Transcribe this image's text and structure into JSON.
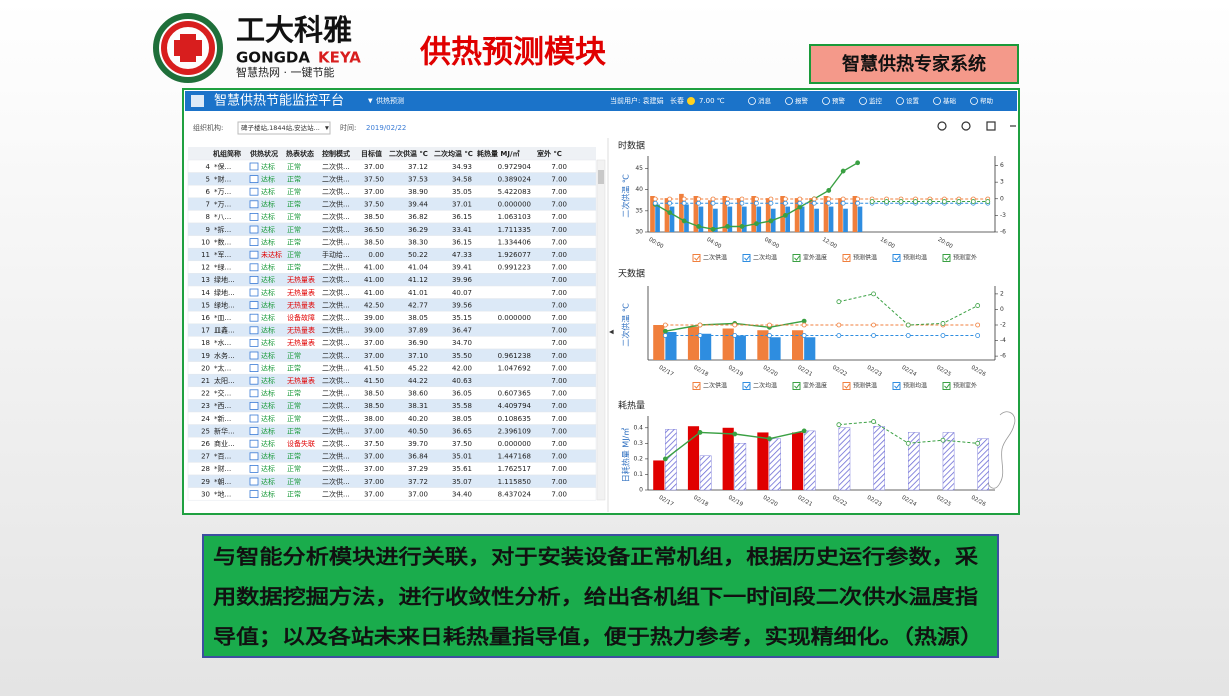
{
  "header": {
    "brand": "工大科雅",
    "brand_en_1": "GONGDA",
    "brand_en_2": "KEYA",
    "slogan": "智慧热网 · 一键节能",
    "title": "供热预测模块",
    "badge": "智慧供热专家系统"
  },
  "app": {
    "title": "智慧供热节能监控平台",
    "menu": "供热预测",
    "user": "当前用户: 袁建娟",
    "city": "长春",
    "temperature": "7.00 ℃",
    "nav": [
      "消息",
      "报警",
      "预警",
      "监控",
      "设置",
      "基础",
      "帮助"
    ],
    "filter": {
      "org_label": "组织机构:",
      "org_value": "碑子楼站,1844站,安达站...",
      "time_label": "时间:",
      "time_value": "2019/02/22"
    }
  },
  "table": {
    "columns": [
      "机组简称",
      "供热状况",
      "热表状态",
      "控制模式",
      "目标值",
      "二次供温 ℃",
      "二次均温 ℃",
      "耗热量 MJ/㎡",
      "室外 ℃"
    ],
    "rows": [
      [
        "4",
        "*保...",
        "达标",
        "正常",
        "二次供...",
        "37.00",
        "37.12",
        "34.93",
        "0.972904",
        "7.00"
      ],
      [
        "5",
        "*财...",
        "达标",
        "正常",
        "二次供...",
        "37.50",
        "37.53",
        "34.58",
        "0.389024",
        "7.00"
      ],
      [
        "6",
        "*万...",
        "达标",
        "正常",
        "二次供...",
        "37.00",
        "38.90",
        "35.05",
        "5.422083",
        "7.00"
      ],
      [
        "7",
        "*万...",
        "达标",
        "正常",
        "二次供...",
        "37.50",
        "39.44",
        "37.01",
        "0.000000",
        "7.00"
      ],
      [
        "8",
        "*八...",
        "达标",
        "正常",
        "二次供...",
        "38.50",
        "36.82",
        "36.15",
        "1.063103",
        "7.00"
      ],
      [
        "9",
        "*拆...",
        "达标",
        "正常",
        "二次供...",
        "36.50",
        "36.29",
        "33.41",
        "1.711335",
        "7.00"
      ],
      [
        "10",
        "*数...",
        "达标",
        "正常",
        "二次供...",
        "38.50",
        "38.30",
        "36.15",
        "1.334406",
        "7.00"
      ],
      [
        "11",
        "*军...",
        "未达标",
        "正常",
        "手动给...",
        "0.00",
        "50.22",
        "47.33",
        "1.926077",
        "7.00"
      ],
      [
        "12",
        "*绿...",
        "达标",
        "正常",
        "二次供...",
        "41.00",
        "41.04",
        "39.41",
        "0.991223",
        "7.00"
      ],
      [
        "13",
        "绿地...",
        "达标",
        "无热量表",
        "二次供...",
        "41.00",
        "41.12",
        "39.96",
        null,
        "7.00"
      ],
      [
        "14",
        "绿地...",
        "达标",
        "无热量表",
        "二次供...",
        "41.00",
        "41.01",
        "40.07",
        null,
        "7.00"
      ],
      [
        "15",
        "绿地...",
        "达标",
        "无热量表",
        "二次供...",
        "42.50",
        "42.77",
        "39.56",
        null,
        "7.00"
      ],
      [
        "16",
        "*皿...",
        "达标",
        "设备故障",
        "二次供...",
        "39.00",
        "38.05",
        "35.15",
        "0.000000",
        "7.00"
      ],
      [
        "17",
        "皿鑫...",
        "达标",
        "无热量表",
        "二次供...",
        "39.00",
        "37.89",
        "36.47",
        null,
        "7.00"
      ],
      [
        "18",
        "*水...",
        "达标",
        "无热量表",
        "二次供...",
        "37.00",
        "36.90",
        "34.70",
        null,
        "7.00"
      ],
      [
        "19",
        "水务...",
        "达标",
        "正常",
        "二次供...",
        "37.00",
        "37.10",
        "35.50",
        "0.961238",
        "7.00"
      ],
      [
        "20",
        "*太...",
        "达标",
        "正常",
        "二次供...",
        "41.50",
        "45.22",
        "42.00",
        "1.047692",
        "7.00"
      ],
      [
        "21",
        "太阳...",
        "达标",
        "无热量表",
        "二次供...",
        "41.50",
        "44.22",
        "40.63",
        null,
        "7.00"
      ],
      [
        "22",
        "*交...",
        "达标",
        "正常",
        "二次供...",
        "38.50",
        "38.60",
        "36.05",
        "0.607365",
        "7.00"
      ],
      [
        "23",
        "*西...",
        "达标",
        "正常",
        "二次供...",
        "38.50",
        "38.31",
        "35.58",
        "4.409794",
        "7.00"
      ],
      [
        "24",
        "*新...",
        "达标",
        "正常",
        "二次供...",
        "38.00",
        "40.20",
        "38.05",
        "0.108635",
        "7.00"
      ],
      [
        "25",
        "新华...",
        "达标",
        "正常",
        "二次供...",
        "37.00",
        "40.50",
        "36.65",
        "2.396109",
        "7.00"
      ],
      [
        "26",
        "商业...",
        "达标",
        "设备失联",
        "二次供...",
        "37.50",
        "39.70",
        "37.50",
        "0.000000",
        "7.00"
      ],
      [
        "27",
        "*百...",
        "达标",
        "正常",
        "二次供...",
        "37.00",
        "36.84",
        "35.01",
        "1.447168",
        "7.00"
      ],
      [
        "28",
        "*财...",
        "达标",
        "正常",
        "二次供...",
        "37.00",
        "37.29",
        "35.61",
        "1.762517",
        "7.00"
      ],
      [
        "29",
        "*朝...",
        "达标",
        "正常",
        "二次供...",
        "37.00",
        "37.72",
        "35.07",
        "1.115850",
        "7.00"
      ],
      [
        "30",
        "*地...",
        "达标",
        "正常",
        "二次供...",
        "37.00",
        "37.00",
        "34.40",
        "8.437024",
        "7.00"
      ]
    ]
  },
  "chart_data": [
    {
      "type": "bar",
      "title": "时数据",
      "ylabel": "二次供温 ℃",
      "categories": [
        "00:00",
        null,
        null,
        null,
        "04:00",
        null,
        null,
        null,
        "08:00",
        null,
        null,
        null,
        "12:00",
        null,
        null,
        null,
        "16:00",
        null,
        null,
        null,
        "20:00",
        null,
        null,
        null
      ],
      "ylim": [
        30,
        47
      ],
      "yticks": [
        30,
        35,
        40,
        45
      ],
      "y2lim": [
        -6,
        7
      ],
      "y2ticks": [
        -6,
        -3,
        0,
        3,
        6
      ],
      "series": [
        {
          "name": "二次供温",
          "type": "bar",
          "color": "#f07f3c",
          "values": [
            38.5,
            38,
            39,
            38.5,
            37.5,
            38.5,
            38,
            38.5,
            38,
            38.5,
            38,
            38,
            38.5,
            38,
            38.5,
            null,
            null,
            null,
            null,
            null,
            null,
            null,
            null,
            null
          ]
        },
        {
          "name": "二次均温",
          "type": "bar",
          "color": "#2e8de0",
          "values": [
            36.5,
            36,
            36.5,
            36,
            35.5,
            36,
            36,
            36,
            35.5,
            36,
            36,
            35.5,
            36,
            35.5,
            36,
            null,
            null,
            null,
            null,
            null,
            null,
            null,
            null,
            null
          ]
        },
        {
          "name": "室外温度",
          "type": "line",
          "axis": "y2",
          "color": "#3aa043",
          "values": [
            -1,
            -2.5,
            -4,
            -5,
            -5.5,
            -5,
            -5,
            -4.5,
            -4,
            -3,
            -1.5,
            0,
            1.5,
            5,
            6.5,
            null,
            null,
            null,
            null,
            null,
            null,
            null,
            null,
            null
          ]
        },
        {
          "name": "预测供温",
          "type": "line",
          "dashed": true,
          "color": "#f07f3c",
          "values": [
            37.8,
            37.8,
            37.8,
            37.8,
            37.8,
            37.8,
            37.8,
            37.8,
            37.8,
            37.8,
            37.8,
            37.8,
            37.8,
            37.8,
            37.8,
            37.8,
            37.8,
            37.8,
            37.8,
            37.8,
            37.8,
            37.8,
            37.8,
            37.8
          ]
        },
        {
          "name": "预测均温",
          "type": "line",
          "dashed": true,
          "color": "#2e8de0",
          "values": [
            36.8,
            36.8,
            36.8,
            36.8,
            36.8,
            36.8,
            36.8,
            36.8,
            36.8,
            36.8,
            36.8,
            36.8,
            36.8,
            36.8,
            36.8,
            36.8,
            36.8,
            36.8,
            36.8,
            36.8,
            36.8,
            36.8,
            36.8,
            36.8
          ]
        },
        {
          "name": "预测室外",
          "type": "line",
          "dashed": true,
          "axis": "y2",
          "color": "#3aa043",
          "values": [
            null,
            null,
            null,
            null,
            null,
            null,
            null,
            null,
            null,
            null,
            null,
            null,
            null,
            null,
            null,
            -0.5,
            -0.5,
            -0.5,
            -0.5,
            -0.5,
            -0.5,
            -0.5,
            -0.5,
            -0.5
          ]
        }
      ]
    },
    {
      "type": "bar",
      "title": "天数据",
      "ylabel": "二次供温 ℃",
      "categories": [
        "02/17",
        "02/18",
        "02/19",
        "02/20",
        "02/21",
        "02/22",
        "02/23",
        "02/24",
        "02/25",
        "02/26"
      ],
      "ylim": [
        30,
        50
      ],
      "y2lim": [
        -6.5,
        2.5
      ],
      "y2ticks": [
        -6,
        -4,
        -2,
        0,
        2
      ],
      "series": [
        {
          "name": "二次供温",
          "type": "bar",
          "color": "#f07f3c",
          "values": [
            40,
            39.5,
            39,
            38.5,
            38.5,
            null,
            null,
            null,
            null,
            null
          ]
        },
        {
          "name": "二次均温",
          "type": "bar",
          "color": "#2e8de0",
          "values": [
            38,
            37.5,
            37,
            36.5,
            36.5,
            null,
            null,
            null,
            null,
            null
          ]
        },
        {
          "name": "室外温度",
          "type": "line",
          "axis": "y2",
          "color": "#3aa043",
          "values": [
            -2.8,
            -2,
            -1.8,
            -2.3,
            -1.5,
            null,
            null,
            null,
            null,
            null
          ]
        },
        {
          "name": "预测供温",
          "type": "line",
          "dashed": true,
          "color": "#f07f3c",
          "values": [
            40,
            40,
            40,
            40,
            40,
            40,
            40,
            40,
            40,
            40
          ]
        },
        {
          "name": "预测均温",
          "type": "line",
          "dashed": true,
          "color": "#2e8de0",
          "values": [
            37,
            37,
            37,
            37,
            37,
            37,
            37,
            37,
            37,
            37
          ]
        },
        {
          "name": "预测室外",
          "type": "line",
          "dashed": true,
          "axis": "y2",
          "color": "#3aa043",
          "values": [
            null,
            null,
            null,
            null,
            null,
            1,
            2,
            -2,
            -1.8,
            0.5
          ]
        }
      ]
    },
    {
      "type": "bar",
      "title": "耗热量",
      "ylabel": "日耗热量 MJ/㎡",
      "categories": [
        "02/17",
        "02/18",
        "02/19",
        "02/20",
        "02/21",
        "02/22",
        "02/23",
        "02/24",
        "02/25",
        "02/26"
      ],
      "ylim": [
        0,
        0.45
      ],
      "yticks": [
        0,
        0.1,
        0.2,
        0.3,
        0.4
      ],
      "series": [
        {
          "type": "bar",
          "color": "#e00000",
          "values": [
            0.19,
            0.41,
            0.4,
            0.37,
            0.37,
            null,
            null,
            null,
            null,
            null
          ]
        },
        {
          "type": "bar",
          "hatched": true,
          "color": "#6b6bd6",
          "values": [
            0.39,
            0.22,
            0.3,
            0.33,
            0.38,
            0.4,
            0.41,
            0.37,
            0.37,
            0.33
          ]
        },
        {
          "type": "line",
          "color": "#3aa043",
          "values": [
            0.2,
            0.37,
            0.36,
            0.33,
            0.38,
            null,
            null,
            null,
            null,
            null
          ]
        },
        {
          "type": "line",
          "dashed": true,
          "color": "#3aa043",
          "values": [
            null,
            null,
            null,
            null,
            null,
            0.42,
            0.44,
            0.3,
            0.32,
            0.3
          ]
        }
      ]
    }
  ],
  "description": [
    "与智能分析模块进行关联，对于安装设备正常机组，根据历史运行参数，采",
    "用数据挖掘方法，进行收敛性分析，给出各机组下一时间段二次供水温度指",
    "导值；以及各站未来日耗热量指导值，便于热力参考，实现精细化。（热源）"
  ]
}
